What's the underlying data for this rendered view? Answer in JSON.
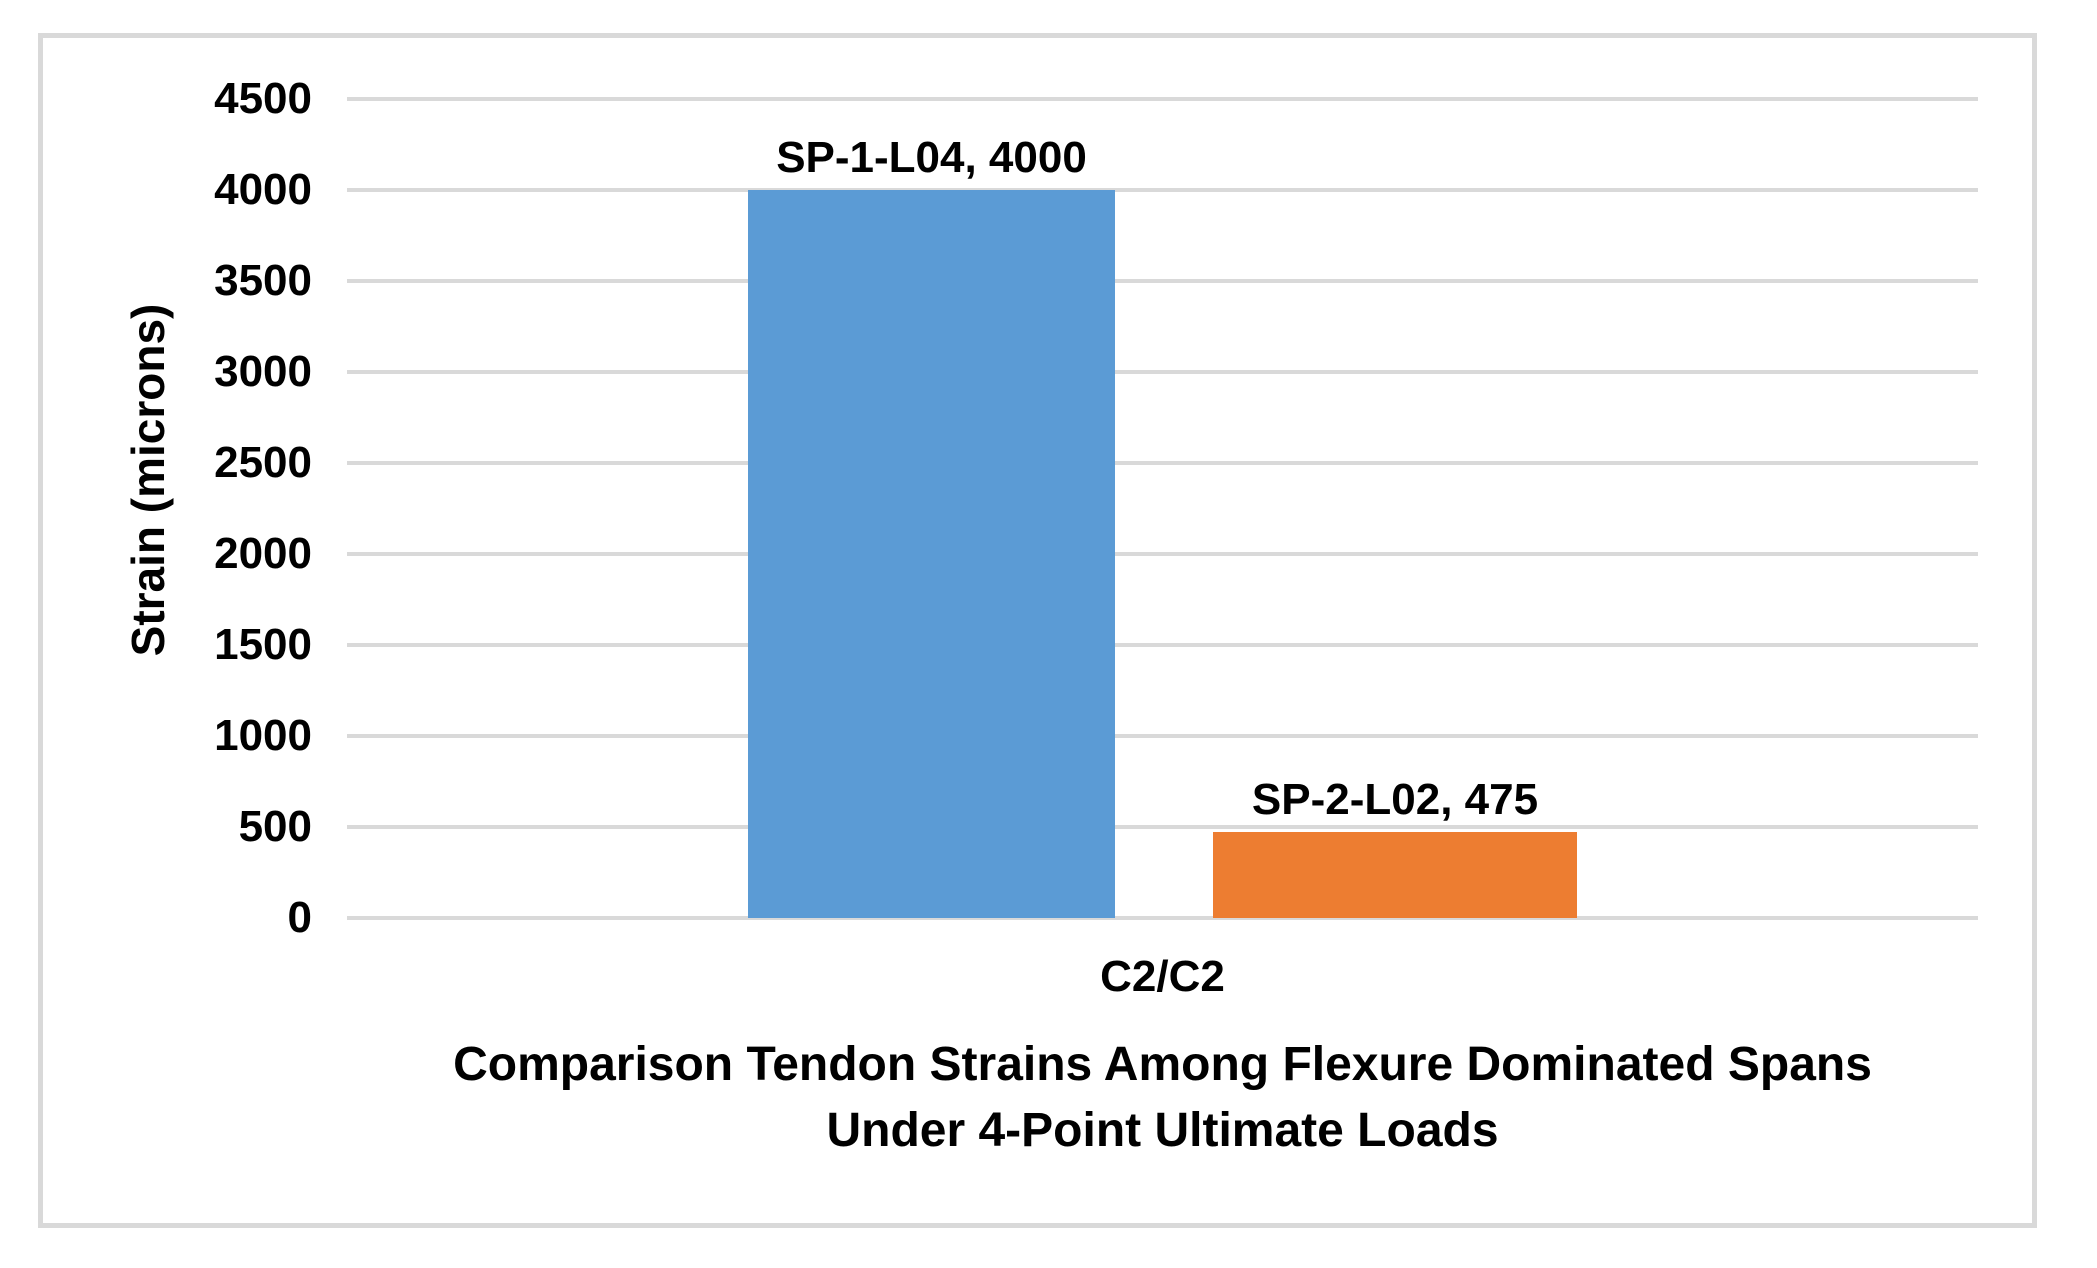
{
  "chart_data": {
    "type": "bar",
    "title": "Comparison Tendon Strains Among Flexure Dominated Spans Under 4-Point Ultimate Loads",
    "title_lines": [
      "Comparison Tendon Strains Among Flexure Dominated Spans",
      "Under 4-Point Ultimate Loads"
    ],
    "ylabel": "Strain (microns)",
    "xlabel": "",
    "categories": [
      "C2/C2"
    ],
    "series": [
      {
        "name": "SP-1-L04",
        "values": [
          4000
        ],
        "color": "#5B9BD5",
        "data_label": "SP-1-L04, 4000"
      },
      {
        "name": "SP-2-L02",
        "values": [
          475
        ],
        "color": "#ED7D31",
        "data_label": "SP-2-L02, 475"
      }
    ],
    "ylim": [
      0,
      4500
    ],
    "ytick_step": 500,
    "yticks": [
      4500,
      4000,
      3500,
      3000,
      2500,
      2000,
      1500,
      1000,
      500,
      0
    ],
    "grid": "horizontal",
    "legend": "none",
    "gridline_color": "#D9D9D9",
    "frame_border_color": "#D9D9D9",
    "bar_colors": {
      "SP-1-L04": "#5B9BD5",
      "SP-2-L02": "#ED7D31"
    },
    "text_color": "#000000"
  }
}
